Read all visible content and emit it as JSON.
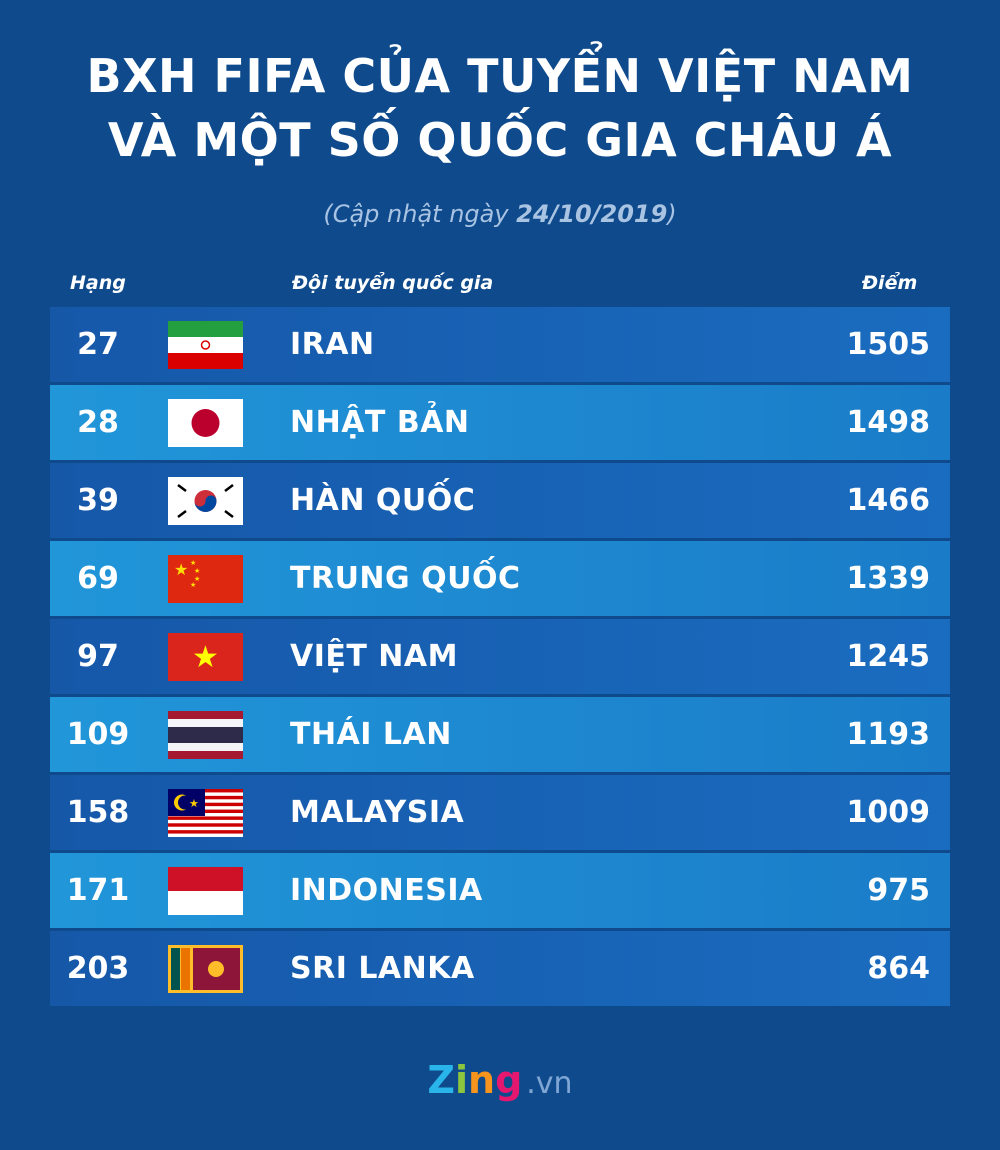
{
  "title_line1": "BXH FIFA CỦA TUYỂN VIỆT NAM",
  "title_line2": "VÀ MỘT SỐ QUỐC GIA CHÂU Á",
  "subtitle_prefix": "(Cập nhật ngày ",
  "subtitle_date": "24/10/2019",
  "subtitle_suffix": ")",
  "chart_data": {
    "type": "table",
    "columns": [
      "Hạng",
      "Đội tuyển quốc gia",
      "Điểm"
    ],
    "rows": [
      {
        "rank": "27",
        "team": "IRAN",
        "points": "1505",
        "flag": "iran"
      },
      {
        "rank": "28",
        "team": "NHẬT BẢN",
        "points": "1498",
        "flag": "japan"
      },
      {
        "rank": "39",
        "team": "HÀN QUỐC",
        "points": "1466",
        "flag": "south-korea"
      },
      {
        "rank": "69",
        "team": "TRUNG QUỐC",
        "points": "1339",
        "flag": "china"
      },
      {
        "rank": "97",
        "team": "VIỆT NAM",
        "points": "1245",
        "flag": "vietnam"
      },
      {
        "rank": "109",
        "team": "THÁI LAN",
        "points": "1193",
        "flag": "thailand"
      },
      {
        "rank": "158",
        "team": "MALAYSIA",
        "points": "1009",
        "flag": "malaysia"
      },
      {
        "rank": "171",
        "team": "INDONESIA",
        "points": "975",
        "flag": "indonesia"
      },
      {
        "rank": "203",
        "team": "SRI LANKA",
        "points": "864",
        "flag": "sri-lanka"
      }
    ]
  },
  "logo": {
    "z": "Z",
    "i": "i",
    "n": "n",
    "g": "g",
    "domain": ".vn"
  }
}
